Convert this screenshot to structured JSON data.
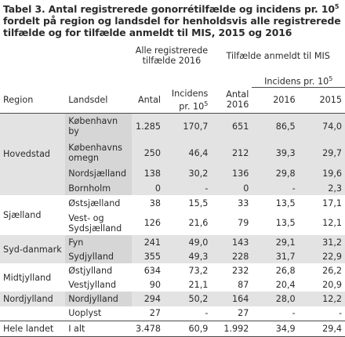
{
  "title": {
    "text_before_sup": "Tabel 3. Antal registrerede gonorrétilfælde og incidens pr. 10",
    "sup": "5",
    "text_after_sup": " fordelt på region og landsdel for henholdsvis alle registrerede tilfælde og for tilfælde anmeldt til MIS, 2015 og 2016"
  },
  "header": {
    "group1": "Alle registrerede tilfælde 2016",
    "group2": "Tilfælde anmeldt til MIS",
    "incidens_group": "Incidens pr. 10",
    "incidens_sup": "5",
    "region": "Region",
    "landsdel": "Landsdel",
    "antal": "Antal",
    "incidens": "Incidens pr. 10",
    "incidens_sup_small": "5",
    "antal_2016": "Antal 2016",
    "y2016": "2016",
    "y2015": "2015"
  },
  "rows": [
    {
      "region": "",
      "landsdel": "København by",
      "antal": "1.285",
      "inc": "170,7",
      "mis_antal": "651",
      "mis_2016": "86,5",
      "mis_2015": "74,0"
    },
    {
      "region": "Hovedstad",
      "landsdel": "Københavns omegn",
      "antal": "250",
      "inc": "46,4",
      "mis_antal": "212",
      "mis_2016": "39,3",
      "mis_2015": "29,7"
    },
    {
      "region": "",
      "landsdel": "Nordsjælland",
      "antal": "138",
      "inc": "30,2",
      "mis_antal": "136",
      "mis_2016": "29,8",
      "mis_2015": "19,6"
    },
    {
      "region": "",
      "landsdel": "Bornholm",
      "antal": "0",
      "inc": "-",
      "mis_antal": "0",
      "mis_2016": "-",
      "mis_2015": "2,3"
    },
    {
      "region": "Sjælland",
      "landsdel": "Østsjælland",
      "antal": "38",
      "inc": "15,5",
      "mis_antal": "33",
      "mis_2016": "13,5",
      "mis_2015": "17,1"
    },
    {
      "region": "",
      "landsdel": "Vest- og Sydsjælland",
      "antal": "126",
      "inc": "21,6",
      "mis_antal": "79",
      "mis_2016": "13,5",
      "mis_2015": "12,1"
    },
    {
      "region": "Syd-danmark",
      "landsdel": "Fyn",
      "antal": "241",
      "inc": "49,0",
      "mis_antal": "143",
      "mis_2016": "29,1",
      "mis_2015": "31,2"
    },
    {
      "region": "",
      "landsdel": "Sydjylland",
      "antal": "355",
      "inc": "49,3",
      "mis_antal": "228",
      "mis_2016": "31,7",
      "mis_2015": "22,9"
    },
    {
      "region": "Midtjylland",
      "landsdel": "Østjylland",
      "antal": "634",
      "inc": "73,2",
      "mis_antal": "232",
      "mis_2016": "26,8",
      "mis_2015": "26,2"
    },
    {
      "region": "",
      "landsdel": "Vestjylland",
      "antal": "90",
      "inc": "21,1",
      "mis_antal": "87",
      "mis_2016": "20,4",
      "mis_2015": "20,9"
    },
    {
      "region": "Nordjylland",
      "landsdel": "Nordjylland",
      "antal": "294",
      "inc": "50,2",
      "mis_antal": "164",
      "mis_2016": "28,0",
      "mis_2015": "12,2"
    },
    {
      "region": "",
      "landsdel": "Uoplyst",
      "antal": "27",
      "inc": "-",
      "mis_antal": "27",
      "mis_2016": "-",
      "mis_2015": "-"
    }
  ],
  "total": {
    "region": "Hele landet",
    "landsdel": "I alt",
    "antal": "3.478",
    "inc": "60,9",
    "mis_antal": "1.992",
    "mis_2016": "34,9",
    "mis_2015": "29,4"
  },
  "colors": {
    "shade": "#e3e3e3",
    "text": "#2b2b2b",
    "rule": "#4a4a4a"
  }
}
